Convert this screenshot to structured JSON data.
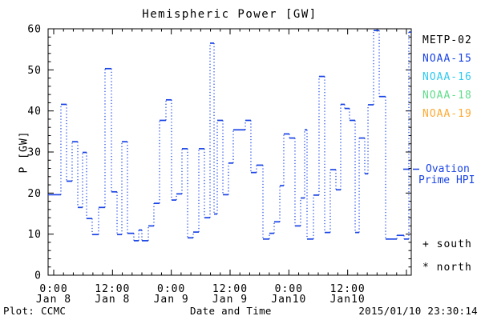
{
  "title": "Hemispheric Power [GW]",
  "legend": {
    "satellites": [
      {
        "label": "METP-02",
        "color": "#000000"
      },
      {
        "label": "NOAA-15",
        "color": "#1a44e6"
      },
      {
        "label": "NOAA-16",
        "color": "#2fc9f2"
      },
      {
        "label": "NOAA-18",
        "color": "#5fdc8a"
      },
      {
        "label": "NOAA-19",
        "color": "#ffaa33"
      }
    ],
    "model_line": {
      "label_line1": "Ovation",
      "label_line2": "Prime HPI",
      "color": "#1a44e6"
    },
    "markers": [
      {
        "symbol": "+",
        "label": "south"
      },
      {
        "symbol": "*",
        "label": "north"
      }
    ]
  },
  "footer": {
    "left": "Plot: CCMC",
    "center": "Date and Time",
    "right": "2015/01/10 23:30:14"
  },
  "chart_data": {
    "type": "line",
    "subtype": "step-with-dotted-risers",
    "title": "Hemispheric Power [GW]",
    "xlabel": "Date and Time",
    "ylabel": "P [GW]",
    "ylim": [
      0,
      60
    ],
    "y_ticks": [
      0,
      10,
      20,
      30,
      40,
      50,
      60
    ],
    "y_major_step": 10,
    "y_minor_step": 2,
    "x_hours_range": [
      -1.15,
      72.98
    ],
    "x_major_step_hours": 12,
    "x_minor_step_hours": 2,
    "grid": false,
    "x_ticks": [
      {
        "hour": 0,
        "time": "0:00",
        "date": "Jan 8"
      },
      {
        "hour": 12,
        "time": "12:00",
        "date": "Jan 8"
      },
      {
        "hour": 24,
        "time": "0:00",
        "date": "Jan 9"
      },
      {
        "hour": 36,
        "time": "12:00",
        "date": "Jan 9"
      },
      {
        "hour": 48,
        "time": "0:00",
        "date": "Jan10"
      },
      {
        "hour": 60,
        "time": "12:00",
        "date": "Jan10"
      }
    ],
    "series": [
      {
        "name": "Ovation Prime HPI (NOAA-15)",
        "color": "#1a44e6",
        "units": "GW",
        "hours_from": "2015-01-08 00:00",
        "steps": [
          [
            -1.15,
            1.47,
            19.6
          ],
          [
            1.47,
            2.62,
            41.6
          ],
          [
            2.62,
            3.76,
            22.9
          ],
          [
            3.76,
            4.91,
            32.5
          ],
          [
            4.91,
            5.89,
            16.5
          ],
          [
            5.89,
            6.71,
            29.9
          ],
          [
            6.71,
            7.85,
            13.8
          ],
          [
            7.85,
            9.16,
            9.9
          ],
          [
            9.16,
            10.47,
            16.5
          ],
          [
            10.47,
            11.78,
            50.3
          ],
          [
            11.78,
            12.93,
            20.3
          ],
          [
            12.93,
            13.91,
            9.9
          ],
          [
            13.91,
            15.05,
            32.5
          ],
          [
            15.05,
            16.36,
            10.2
          ],
          [
            16.36,
            17.35,
            8.4
          ],
          [
            17.35,
            18.0,
            11.0
          ],
          [
            18.0,
            19.31,
            8.4
          ],
          [
            19.31,
            20.45,
            12.0
          ],
          [
            20.45,
            21.6,
            17.5
          ],
          [
            21.6,
            22.91,
            37.7
          ],
          [
            22.91,
            24.05,
            42.7
          ],
          [
            24.05,
            25.04,
            18.3
          ],
          [
            25.04,
            26.18,
            19.8
          ],
          [
            26.18,
            27.33,
            30.8
          ],
          [
            27.33,
            28.47,
            9.1
          ],
          [
            28.47,
            29.62,
            10.5
          ],
          [
            29.62,
            30.76,
            30.8
          ],
          [
            30.76,
            31.91,
            14.0
          ],
          [
            31.91,
            32.73,
            56.5
          ],
          [
            32.73,
            33.38,
            14.9
          ],
          [
            33.38,
            34.53,
            37.7
          ],
          [
            34.53,
            35.67,
            19.6
          ],
          [
            35.67,
            36.65,
            27.3
          ],
          [
            36.65,
            39.11,
            35.4
          ],
          [
            39.11,
            40.25,
            37.7
          ],
          [
            40.25,
            41.4,
            25.0
          ],
          [
            41.4,
            42.71,
            26.8
          ],
          [
            42.71,
            44.02,
            8.8
          ],
          [
            44.02,
            45.0,
            10.2
          ],
          [
            45.0,
            46.15,
            13.0
          ],
          [
            46.15,
            46.96,
            21.8
          ],
          [
            46.96,
            48.11,
            34.4
          ],
          [
            48.11,
            49.25,
            33.4
          ],
          [
            49.25,
            50.4,
            12.0
          ],
          [
            50.4,
            51.22,
            18.8
          ],
          [
            51.22,
            51.71,
            35.4
          ],
          [
            51.71,
            53.02,
            8.8
          ],
          [
            53.02,
            54.16,
            19.5
          ],
          [
            54.16,
            55.31,
            48.4
          ],
          [
            55.31,
            56.45,
            10.4
          ],
          [
            56.45,
            57.6,
            25.7
          ],
          [
            57.6,
            58.58,
            20.8
          ],
          [
            58.58,
            59.4,
            41.6
          ],
          [
            59.4,
            60.38,
            40.6
          ],
          [
            60.38,
            61.53,
            37.7
          ],
          [
            61.53,
            62.35,
            10.4
          ],
          [
            62.35,
            63.49,
            33.4
          ],
          [
            63.49,
            64.15,
            24.7
          ],
          [
            64.15,
            65.29,
            41.5
          ],
          [
            65.29,
            66.44,
            59.6
          ],
          [
            66.44,
            67.75,
            43.5
          ],
          [
            67.75,
            70.04,
            8.8
          ],
          [
            70.04,
            71.51,
            9.7
          ],
          [
            71.51,
            72.49,
            8.8
          ],
          [
            72.49,
            72.95,
            59.2
          ]
        ]
      }
    ]
  }
}
